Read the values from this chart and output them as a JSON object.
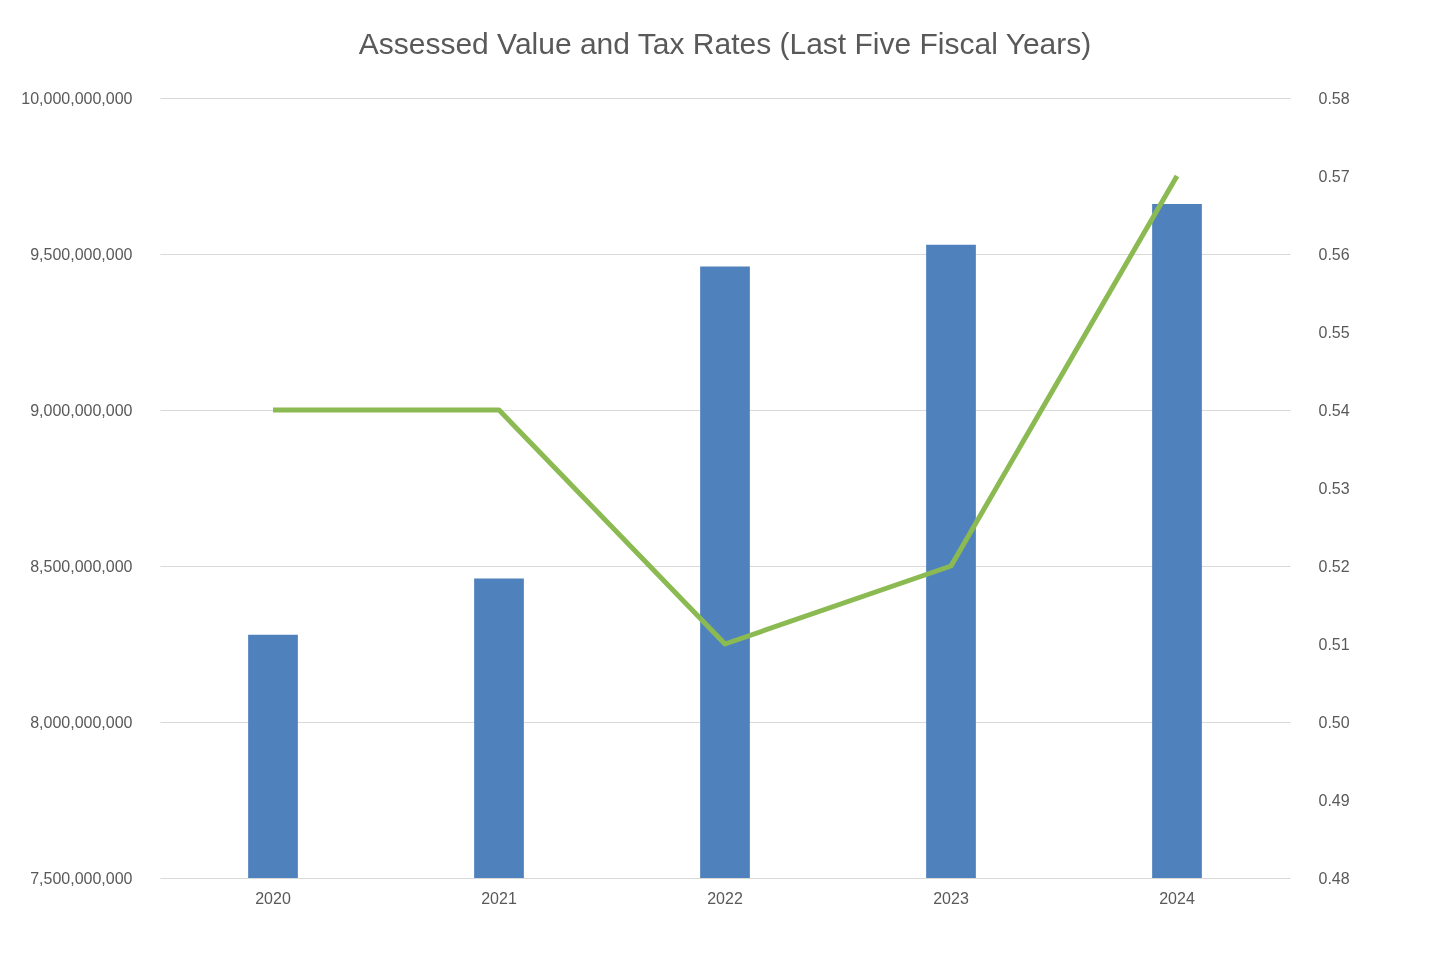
{
  "chart_data": {
    "type": "bar",
    "title": "Assessed Value and Tax Rates (Last Five Fiscal Years)",
    "categories": [
      "2020",
      "2021",
      "2022",
      "2023",
      "2024"
    ],
    "series": [
      {
        "color": "#4f81bd",
        "values": [
          8280000000,
          8460000000,
          9460000000,
          9530000000,
          9660000000
        ]
      },
      {
        "type": "line",
        "axis": "y2",
        "color": "#8cba52",
        "values": [
          0.54,
          0.54,
          0.51,
          0.52,
          0.57
        ]
      }
    ],
    "ylim": [
      7500000000,
      10000000000
    ],
    "yticks": [
      {
        "value": 7500000000,
        "label": "7,500,000,000"
      },
      {
        "value": 8000000000,
        "label": "8,000,000,000"
      },
      {
        "value": 8500000000,
        "label": "8,500,000,000"
      },
      {
        "value": 9000000000,
        "label": "9,000,000,000"
      },
      {
        "value": 9500000000,
        "label": "9,500,000,000"
      },
      {
        "value": 10000000000,
        "label": "10,000,000,000"
      }
    ],
    "y2lim": [
      0.48,
      0.58
    ],
    "y2ticks": [
      {
        "value": 0.48,
        "label": "0.48"
      },
      {
        "value": 0.49,
        "label": "0.49"
      },
      {
        "value": 0.5,
        "label": "0.50"
      },
      {
        "value": 0.51,
        "label": "0.51"
      },
      {
        "value": 0.52,
        "label": "0.52"
      },
      {
        "value": 0.53,
        "label": "0.53"
      },
      {
        "value": 0.54,
        "label": "0.54"
      },
      {
        "value": 0.55,
        "label": "0.55"
      },
      {
        "value": 0.56,
        "label": "0.56"
      },
      {
        "value": 0.57,
        "label": "0.57"
      },
      {
        "value": 0.58,
        "label": "0.58"
      }
    ],
    "grid": "y"
  }
}
